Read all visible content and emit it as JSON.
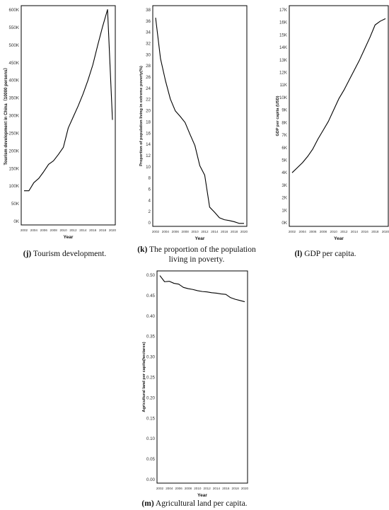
{
  "chart_data": [
    {
      "type": "line",
      "panel": "j",
      "xlabel": "Year",
      "ylabel": "Tourism development in China（10000 persons）",
      "xlim": [
        2002,
        2020
      ],
      "ylim": [
        0,
        600000
      ],
      "x_ticks": [
        "2002",
        "2004",
        "2006",
        "2008",
        "2010",
        "2012",
        "2014",
        "2016",
        "2018",
        "2020"
      ],
      "y_ticks": [
        "0K",
        "50K",
        "100K",
        "150K",
        "200K",
        "250K",
        "300K",
        "350K",
        "400K",
        "450K",
        "500K",
        "550K",
        "600K"
      ],
      "x": [
        2002,
        2003,
        2004,
        2005,
        2006,
        2007,
        2008,
        2009,
        2010,
        2011,
        2012,
        2013,
        2014,
        2015,
        2016,
        2017,
        2018,
        2019,
        2020
      ],
      "values": [
        87000,
        87000,
        110000,
        122000,
        141000,
        162000,
        172000,
        190000,
        210000,
        265000,
        296000,
        327000,
        361000,
        400000,
        444000,
        500000,
        553000,
        601000,
        288000
      ],
      "caption_letter": "(j)",
      "caption_text": "Tourism development."
    },
    {
      "type": "line",
      "panel": "k",
      "xlabel": "Year",
      "ylabel": "Proportion of population living in extreme poverty(%)",
      "xlim": [
        2002,
        2020
      ],
      "ylim": [
        0,
        38
      ],
      "x_ticks": [
        "2002",
        "2004",
        "2006",
        "2008",
        "2010",
        "2012",
        "2014",
        "2016",
        "2018",
        "2020"
      ],
      "y_ticks": [
        "0",
        "2",
        "4",
        "6",
        "8",
        "10",
        "12",
        "14",
        "16",
        "18",
        "20",
        "22",
        "24",
        "26",
        "28",
        "30",
        "32",
        "34",
        "36",
        "38"
      ],
      "x": [
        2002,
        2003,
        2004,
        2005,
        2006,
        2007,
        2008,
        2009,
        2010,
        2011,
        2012,
        2013,
        2014,
        2015,
        2016,
        2017,
        2018,
        2019,
        2020
      ],
      "values": [
        36.6,
        29.3,
        25.4,
        22.1,
        20.0,
        19.0,
        17.9,
        15.8,
        13.8,
        10.2,
        8.5,
        2.8,
        1.9,
        0.9,
        0.55,
        0.4,
        0.2,
        -0.1,
        -0.1
      ],
      "caption_letter": "(k)",
      "caption_text_1": "The proportion of the population",
      "caption_text_2": "living in poverty."
    },
    {
      "type": "line",
      "panel": "l",
      "xlabel": "Year",
      "ylabel": "GDP per capita (USD)",
      "xlim": [
        2002,
        2020
      ],
      "ylim": [
        0,
        17000
      ],
      "x_ticks": [
        "2002",
        "2004",
        "2006",
        "2008",
        "2010",
        "2012",
        "2014",
        "2016",
        "2018",
        "2020"
      ],
      "y_ticks": [
        "0K",
        "1K",
        "2K",
        "3K",
        "4K",
        "5K",
        "6K",
        "7K",
        "8K",
        "9K",
        "10K",
        "11K",
        "12K",
        "13K",
        "14K",
        "15K",
        "16K",
        "17K"
      ],
      "x": [
        2002,
        2003,
        2004,
        2005,
        2006,
        2007,
        2008,
        2009,
        2010,
        2011,
        2012,
        2013,
        2014,
        2015,
        2016,
        2017,
        2018,
        2019,
        2020
      ],
      "values": [
        4000,
        4400,
        4800,
        5300,
        5900,
        6700,
        7400,
        8100,
        9000,
        9900,
        10600,
        11400,
        12200,
        13000,
        13900,
        14800,
        15800,
        16100,
        16300
      ],
      "caption_letter": "(l)",
      "caption_text": "GDP per capita."
    },
    {
      "type": "line",
      "panel": "m",
      "xlabel": "Year",
      "ylabel": "Agricultural land per capita(hectares)",
      "xlim": [
        2002,
        2020
      ],
      "ylim": [
        0,
        0.5
      ],
      "x_ticks": [
        "2002",
        "2004",
        "2006",
        "2008",
        "2010",
        "2012",
        "2014",
        "2016",
        "2018",
        "2020"
      ],
      "y_ticks": [
        "0.00",
        "0.05",
        "0.10",
        "0.15",
        "0.20",
        "0.25",
        "0.30",
        "0.35",
        "0.40",
        "0.45",
        "0.50"
      ],
      "x": [
        2002,
        2003,
        2004,
        2005,
        2006,
        2007,
        2008,
        2009,
        2010,
        2011,
        2012,
        2013,
        2014,
        2015,
        2016,
        2017,
        2018,
        2019,
        2020
      ],
      "values": [
        0.499,
        0.484,
        0.485,
        0.48,
        0.478,
        0.47,
        0.467,
        0.465,
        0.462,
        0.46,
        0.459,
        0.457,
        0.456,
        0.454,
        0.453,
        0.445,
        0.441,
        0.438,
        0.435
      ],
      "caption_letter": "(m)",
      "caption_text": "Agricultural land per capita."
    }
  ]
}
